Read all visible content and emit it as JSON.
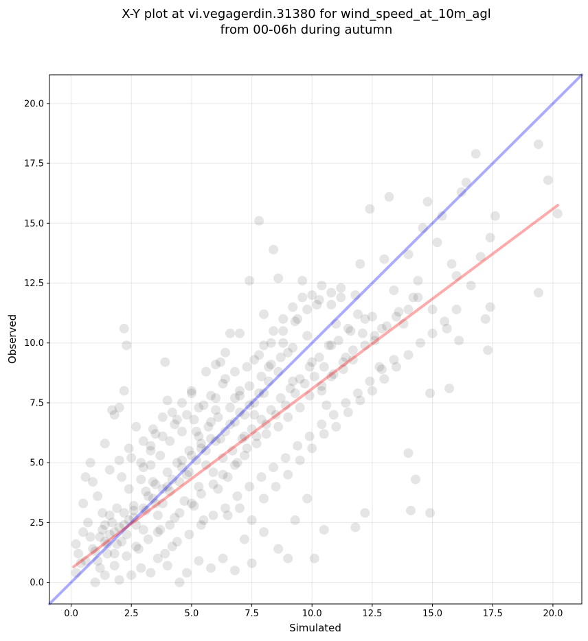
{
  "chart_data": {
    "type": "scatter",
    "title_lines": [
      "X-Y plot at vi.vegagerdin.31380 for wind_speed_at_10m_agl",
      "from 00-06h during autumn"
    ],
    "xlabel": "Simulated",
    "ylabel": "Observed",
    "xlim": [
      -0.9,
      21.2
    ],
    "ylim": [
      -0.9,
      21.2
    ],
    "x_ticks": [
      0.0,
      2.5,
      5.0,
      7.5,
      10.0,
      12.5,
      15.0,
      17.5,
      20.0
    ],
    "y_ticks": [
      0.0,
      2.5,
      5.0,
      7.5,
      10.0,
      12.5,
      15.0,
      17.5,
      20.0
    ],
    "x_tick_labels": [
      "0.0",
      "2.5",
      "5.0",
      "7.5",
      "10.0",
      "12.5",
      "15.0",
      "17.5",
      "20.0"
    ],
    "y_tick_labels": [
      "0.0",
      "2.5",
      "5.0",
      "7.5",
      "10.0",
      "12.5",
      "15.0",
      "17.5",
      "20.0"
    ],
    "grid": true,
    "point_color": "#000000",
    "point_alpha": 0.1,
    "identity_line": {
      "from": [
        -0.9,
        -0.9
      ],
      "to": [
        21.2,
        21.2
      ],
      "color": "#0000ff",
      "alpha": 0.33
    },
    "regression_line": {
      "from": [
        0.1,
        0.65
      ],
      "to": [
        20.2,
        15.75
      ],
      "color": "#ff0000",
      "alpha": 0.33
    },
    "points": [
      [
        0.5,
        3.3
      ],
      [
        1.0,
        0.0
      ],
      [
        1.2,
        0.6
      ],
      [
        1.5,
        1.6
      ],
      [
        1.6,
        2.0
      ],
      [
        1.8,
        1.2
      ],
      [
        2.0,
        2.3
      ],
      [
        2.2,
        10.6
      ],
      [
        2.3,
        9.9
      ],
      [
        2.2,
        8.0
      ],
      [
        1.7,
        7.2
      ],
      [
        2.0,
        7.3
      ],
      [
        1.8,
        7.0
      ],
      [
        0.8,
        5.0
      ],
      [
        1.4,
        5.8
      ],
      [
        0.6,
        4.4
      ],
      [
        0.9,
        4.2
      ],
      [
        1.1,
        3.6
      ],
      [
        1.3,
        2.9
      ],
      [
        0.7,
        2.5
      ],
      [
        0.3,
        1.2
      ],
      [
        0.4,
        0.8
      ],
      [
        0.2,
        1.6
      ],
      [
        0.5,
        2.1
      ],
      [
        0.9,
        1.4
      ],
      [
        1.2,
        1.9
      ],
      [
        1.4,
        2.4
      ],
      [
        1.6,
        2.8
      ],
      [
        1.9,
        3.1
      ],
      [
        2.1,
        1.7
      ],
      [
        2.4,
        2.6
      ],
      [
        2.6,
        3.0
      ],
      [
        2.8,
        1.4
      ],
      [
        3.0,
        2.2
      ],
      [
        3.2,
        3.6
      ],
      [
        3.4,
        4.2
      ],
      [
        3.6,
        2.8
      ],
      [
        3.8,
        3.3
      ],
      [
        4.0,
        4.0
      ],
      [
        4.2,
        1.5
      ],
      [
        2.5,
        5.2
      ],
      [
        2.7,
        6.5
      ],
      [
        3.0,
        4.8
      ],
      [
        3.3,
        5.5
      ],
      [
        3.5,
        6.2
      ],
      [
        3.9,
        9.2
      ],
      [
        4.0,
        7.6
      ],
      [
        4.4,
        6.8
      ],
      [
        4.6,
        5.1
      ],
      [
        4.8,
        4.5
      ],
      [
        5.0,
        7.9
      ],
      [
        5.2,
        6.3
      ],
      [
        5.4,
        5.8
      ],
      [
        5.6,
        4.9
      ],
      [
        5.8,
        6.7
      ],
      [
        6.0,
        7.2
      ],
      [
        6.2,
        9.2
      ],
      [
        6.4,
        8.5
      ],
      [
        6.6,
        10.4
      ],
      [
        6.8,
        7.7
      ],
      [
        7.0,
        8.0
      ],
      [
        7.2,
        6.1
      ],
      [
        7.4,
        12.6
      ],
      [
        7.6,
        7.0
      ],
      [
        7.8,
        15.1
      ],
      [
        8.0,
        11.2
      ],
      [
        8.2,
        9.0
      ],
      [
        8.4,
        13.9
      ],
      [
        8.6,
        12.7
      ],
      [
        8.8,
        10.0
      ],
      [
        9.0,
        9.6
      ],
      [
        9.2,
        8.4
      ],
      [
        9.4,
        11.0
      ],
      [
        9.6,
        12.6
      ],
      [
        9.8,
        10.3
      ],
      [
        10.0,
        9.2
      ],
      [
        10.2,
        11.6
      ],
      [
        10.4,
        8.0
      ],
      [
        10.6,
        7.4
      ],
      [
        10.8,
        9.9
      ],
      [
        11.0,
        10.8
      ],
      [
        11.2,
        12.3
      ],
      [
        11.4,
        9.4
      ],
      [
        11.6,
        10.5
      ],
      [
        11.8,
        12.0
      ],
      [
        12.0,
        13.3
      ],
      [
        12.2,
        11.0
      ],
      [
        12.4,
        15.6
      ],
      [
        12.6,
        10.1
      ],
      [
        12.8,
        9.0
      ],
      [
        13.0,
        13.5
      ],
      [
        13.2,
        16.1
      ],
      [
        13.4,
        12.2
      ],
      [
        13.6,
        11.3
      ],
      [
        13.8,
        10.8
      ],
      [
        14.0,
        13.7
      ],
      [
        14.2,
        11.9
      ],
      [
        14.4,
        12.6
      ],
      [
        14.6,
        14.8
      ],
      [
        14.8,
        15.9
      ],
      [
        15.0,
        11.4
      ],
      [
        15.2,
        14.2
      ],
      [
        15.4,
        15.3
      ],
      [
        15.6,
        10.6
      ],
      [
        15.8,
        13.3
      ],
      [
        16.0,
        12.8
      ],
      [
        16.2,
        16.3
      ],
      [
        16.4,
        16.7
      ],
      [
        16.6,
        12.4
      ],
      [
        16.8,
        17.9
      ],
      [
        17.0,
        13.6
      ],
      [
        17.2,
        11.0
      ],
      [
        17.4,
        14.4
      ],
      [
        17.6,
        15.3
      ],
      [
        19.4,
        18.3
      ],
      [
        19.8,
        16.8
      ],
      [
        20.2,
        15.4
      ],
      [
        19.4,
        12.1
      ],
      [
        17.4,
        11.5
      ],
      [
        17.3,
        9.7
      ],
      [
        16.1,
        10.1
      ],
      [
        15.7,
        8.1
      ],
      [
        14.9,
        7.9
      ],
      [
        14.0,
        5.4
      ],
      [
        14.1,
        3.0
      ],
      [
        14.3,
        4.3
      ],
      [
        14.9,
        2.9
      ],
      [
        12.2,
        2.9
      ],
      [
        11.8,
        2.3
      ],
      [
        10.5,
        2.2
      ],
      [
        10.1,
        1.0
      ],
      [
        9.8,
        3.5
      ],
      [
        9.3,
        2.6
      ],
      [
        9.0,
        1.0
      ],
      [
        8.6,
        1.4
      ],
      [
        8.0,
        2.1
      ],
      [
        7.5,
        0.8
      ],
      [
        7.2,
        1.8
      ],
      [
        6.8,
        0.5
      ],
      [
        6.3,
        1.0
      ],
      [
        5.8,
        0.6
      ],
      [
        5.3,
        0.9
      ],
      [
        4.8,
        0.4
      ],
      [
        4.5,
        0.0
      ],
      [
        4.0,
        0.7
      ],
      [
        3.6,
        1.0
      ],
      [
        3.3,
        0.4
      ],
      [
        2.9,
        0.6
      ],
      [
        2.5,
        0.3
      ],
      [
        2.0,
        0.1
      ],
      [
        5.1,
        3.2
      ],
      [
        5.5,
        2.6
      ],
      [
        6.1,
        3.9
      ],
      [
        6.5,
        4.4
      ],
      [
        6.9,
        5.0
      ],
      [
        7.3,
        5.6
      ],
      [
        7.7,
        6.1
      ],
      [
        8.1,
        6.6
      ],
      [
        8.5,
        7.0
      ],
      [
        8.9,
        7.4
      ],
      [
        9.3,
        7.9
      ],
      [
        9.7,
        8.3
      ],
      [
        10.1,
        8.6
      ],
      [
        10.5,
        9.0
      ],
      [
        10.9,
        8.7
      ],
      [
        11.3,
        9.2
      ],
      [
        11.7,
        9.7
      ],
      [
        12.1,
        10.4
      ],
      [
        12.5,
        11.1
      ],
      [
        12.9,
        10.6
      ],
      [
        6.2,
        6.0
      ],
      [
        6.6,
        6.6
      ],
      [
        7.0,
        7.1
      ],
      [
        7.4,
        7.4
      ],
      [
        7.8,
        7.9
      ],
      [
        8.2,
        8.4
      ],
      [
        8.6,
        8.8
      ],
      [
        5.0,
        5.3
      ],
      [
        5.4,
        5.6
      ],
      [
        5.8,
        6.0
      ],
      [
        4.1,
        3.8
      ],
      [
        4.5,
        4.2
      ],
      [
        4.9,
        4.6
      ],
      [
        3.1,
        3.0
      ],
      [
        3.5,
        3.3
      ],
      [
        2.3,
        2.0
      ],
      [
        2.7,
        2.4
      ],
      [
        1.9,
        1.6
      ],
      [
        1.5,
        1.2
      ],
      [
        1.1,
        0.9
      ],
      [
        3.7,
        2.2
      ],
      [
        4.3,
        2.7
      ],
      [
        4.7,
        3.4
      ],
      [
        5.3,
        4.0
      ],
      [
        5.9,
        4.6
      ],
      [
        6.3,
        5.2
      ],
      [
        6.7,
        5.5
      ],
      [
        7.1,
        6.0
      ],
      [
        7.5,
        6.4
      ],
      [
        7.9,
        6.8
      ],
      [
        8.3,
        7.2
      ],
      [
        8.7,
        7.7
      ],
      [
        9.1,
        8.1
      ],
      [
        9.5,
        8.5
      ],
      [
        9.9,
        9.0
      ],
      [
        10.3,
        9.4
      ],
      [
        10.7,
        9.9
      ],
      [
        11.1,
        10.1
      ],
      [
        11.5,
        10.6
      ],
      [
        11.9,
        11.2
      ],
      [
        3.0,
        5.9
      ],
      [
        3.4,
        6.4
      ],
      [
        3.8,
        6.9
      ],
      [
        4.2,
        7.1
      ],
      [
        4.6,
        7.5
      ],
      [
        5.0,
        8.0
      ],
      [
        5.6,
        8.8
      ],
      [
        6.0,
        9.1
      ],
      [
        6.4,
        9.6
      ],
      [
        7.0,
        10.4
      ],
      [
        7.6,
        9.3
      ],
      [
        8.0,
        9.9
      ],
      [
        8.4,
        10.5
      ],
      [
        8.8,
        11.0
      ],
      [
        9.2,
        11.5
      ],
      [
        9.6,
        11.9
      ],
      [
        10.0,
        12.0
      ],
      [
        10.4,
        12.4
      ],
      [
        10.8,
        11.6
      ],
      [
        11.2,
        11.9
      ],
      [
        6.5,
        2.8
      ],
      [
        7.0,
        3.1
      ],
      [
        7.5,
        2.6
      ],
      [
        8.0,
        3.5
      ],
      [
        8.5,
        4.0
      ],
      [
        9.0,
        4.5
      ],
      [
        9.5,
        5.1
      ],
      [
        10.0,
        5.6
      ],
      [
        10.5,
        6.2
      ],
      [
        11.0,
        6.5
      ],
      [
        11.5,
        7.1
      ],
      [
        12.0,
        7.6
      ],
      [
        12.5,
        8.0
      ],
      [
        13.0,
        8.5
      ],
      [
        13.5,
        9.0
      ],
      [
        14.0,
        9.5
      ],
      [
        14.5,
        10.0
      ],
      [
        15.0,
        10.4
      ],
      [
        15.5,
        10.9
      ],
      [
        16.0,
        11.4
      ],
      [
        0.8,
        1.9
      ],
      [
        1.3,
        2.2
      ],
      [
        1.7,
        2.5
      ],
      [
        2.2,
        2.9
      ],
      [
        2.6,
        3.2
      ],
      [
        3.1,
        3.8
      ],
      [
        3.5,
        4.1
      ],
      [
        4.0,
        4.6
      ],
      [
        4.4,
        5.0
      ],
      [
        4.9,
        5.5
      ],
      [
        5.3,
        6.1
      ],
      [
        5.7,
        6.5
      ],
      [
        6.1,
        6.9
      ],
      [
        6.6,
        7.3
      ],
      [
        7.0,
        7.8
      ],
      [
        7.4,
        8.2
      ],
      [
        7.9,
        8.6
      ],
      [
        8.3,
        9.1
      ],
      [
        8.7,
        9.4
      ],
      [
        9.2,
        9.8
      ],
      [
        2.1,
        4.4
      ],
      [
        2.4,
        3.9
      ],
      [
        2.9,
        4.3
      ],
      [
        3.3,
        4.9
      ],
      [
        3.7,
        5.3
      ],
      [
        4.1,
        5.9
      ],
      [
        4.6,
        6.3
      ],
      [
        5.1,
        6.8
      ],
      [
        5.5,
        7.4
      ],
      [
        6.0,
        7.7
      ],
      [
        1.4,
        0.3
      ],
      [
        1.8,
        0.7
      ],
      [
        2.3,
        1.1
      ],
      [
        2.7,
        1.5
      ],
      [
        3.2,
        1.8
      ],
      [
        3.6,
        2.1
      ],
      [
        4.1,
        2.4
      ],
      [
        4.5,
        2.9
      ],
      [
        5.0,
        3.3
      ],
      [
        5.4,
        3.7
      ],
      [
        5.9,
        4.1
      ],
      [
        6.3,
        4.5
      ],
      [
        6.8,
        4.9
      ],
      [
        7.2,
        5.3
      ],
      [
        7.7,
        5.8
      ],
      [
        8.1,
        6.2
      ],
      [
        8.6,
        6.5
      ],
      [
        9.0,
        6.9
      ],
      [
        9.5,
        7.3
      ],
      [
        9.9,
        7.8
      ],
      [
        10.4,
        8.2
      ],
      [
        10.8,
        8.6
      ],
      [
        11.3,
        8.9
      ],
      [
        11.7,
        9.3
      ],
      [
        12.2,
        9.9
      ],
      [
        12.6,
        10.3
      ],
      [
        13.1,
        10.7
      ],
      [
        13.5,
        11.1
      ],
      [
        14.0,
        11.4
      ],
      [
        14.4,
        11.9
      ],
      [
        0.2,
        0.4
      ],
      [
        0.6,
        0.9
      ],
      [
        1.0,
        1.3
      ],
      [
        1.4,
        1.7
      ],
      [
        1.8,
        2.1
      ],
      [
        2.2,
        2.4
      ],
      [
        2.6,
        2.7
      ],
      [
        3.0,
        3.1
      ],
      [
        3.4,
        3.5
      ],
      [
        3.8,
        3.9
      ],
      [
        4.2,
        4.3
      ],
      [
        4.6,
        4.8
      ],
      [
        5.2,
        5.1
      ],
      [
        5.6,
        5.5
      ],
      [
        6.0,
        5.9
      ],
      [
        6.4,
        6.3
      ],
      [
        6.8,
        6.7
      ],
      [
        7.2,
        7.0
      ],
      [
        7.6,
        7.5
      ],
      [
        8.0,
        7.9
      ],
      [
        3.9,
        1.2
      ],
      [
        4.4,
        1.7
      ],
      [
        4.9,
        2.0
      ],
      [
        5.4,
        2.4
      ],
      [
        5.9,
        2.8
      ],
      [
        6.4,
        3.1
      ],
      [
        6.9,
        3.6
      ],
      [
        7.4,
        4.0
      ],
      [
        7.9,
        4.4
      ],
      [
        8.4,
        4.8
      ],
      [
        8.9,
        5.2
      ],
      [
        9.4,
        5.7
      ],
      [
        9.9,
        6.1
      ],
      [
        10.4,
        6.6
      ],
      [
        10.9,
        7.0
      ],
      [
        11.4,
        7.5
      ],
      [
        11.9,
        7.9
      ],
      [
        12.4,
        8.4
      ],
      [
        12.9,
        8.9
      ],
      [
        13.4,
        9.3
      ],
      [
        1.6,
        4.7
      ],
      [
        2.0,
        5.1
      ],
      [
        2.4,
        5.6
      ],
      [
        2.9,
        5.0
      ],
      [
        3.3,
        5.7
      ],
      [
        3.8,
        6.1
      ],
      [
        4.3,
        6.6
      ],
      [
        4.8,
        7.0
      ],
      [
        5.3,
        7.3
      ],
      [
        5.8,
        7.8
      ],
      [
        6.3,
        8.3
      ],
      [
        6.8,
        8.8
      ],
      [
        7.3,
        9.0
      ],
      [
        7.8,
        9.5
      ],
      [
        8.3,
        10.0
      ],
      [
        8.8,
        10.5
      ],
      [
        9.3,
        10.9
      ],
      [
        9.8,
        11.4
      ],
      [
        10.3,
        11.8
      ],
      [
        10.8,
        12.1
      ]
    ]
  }
}
